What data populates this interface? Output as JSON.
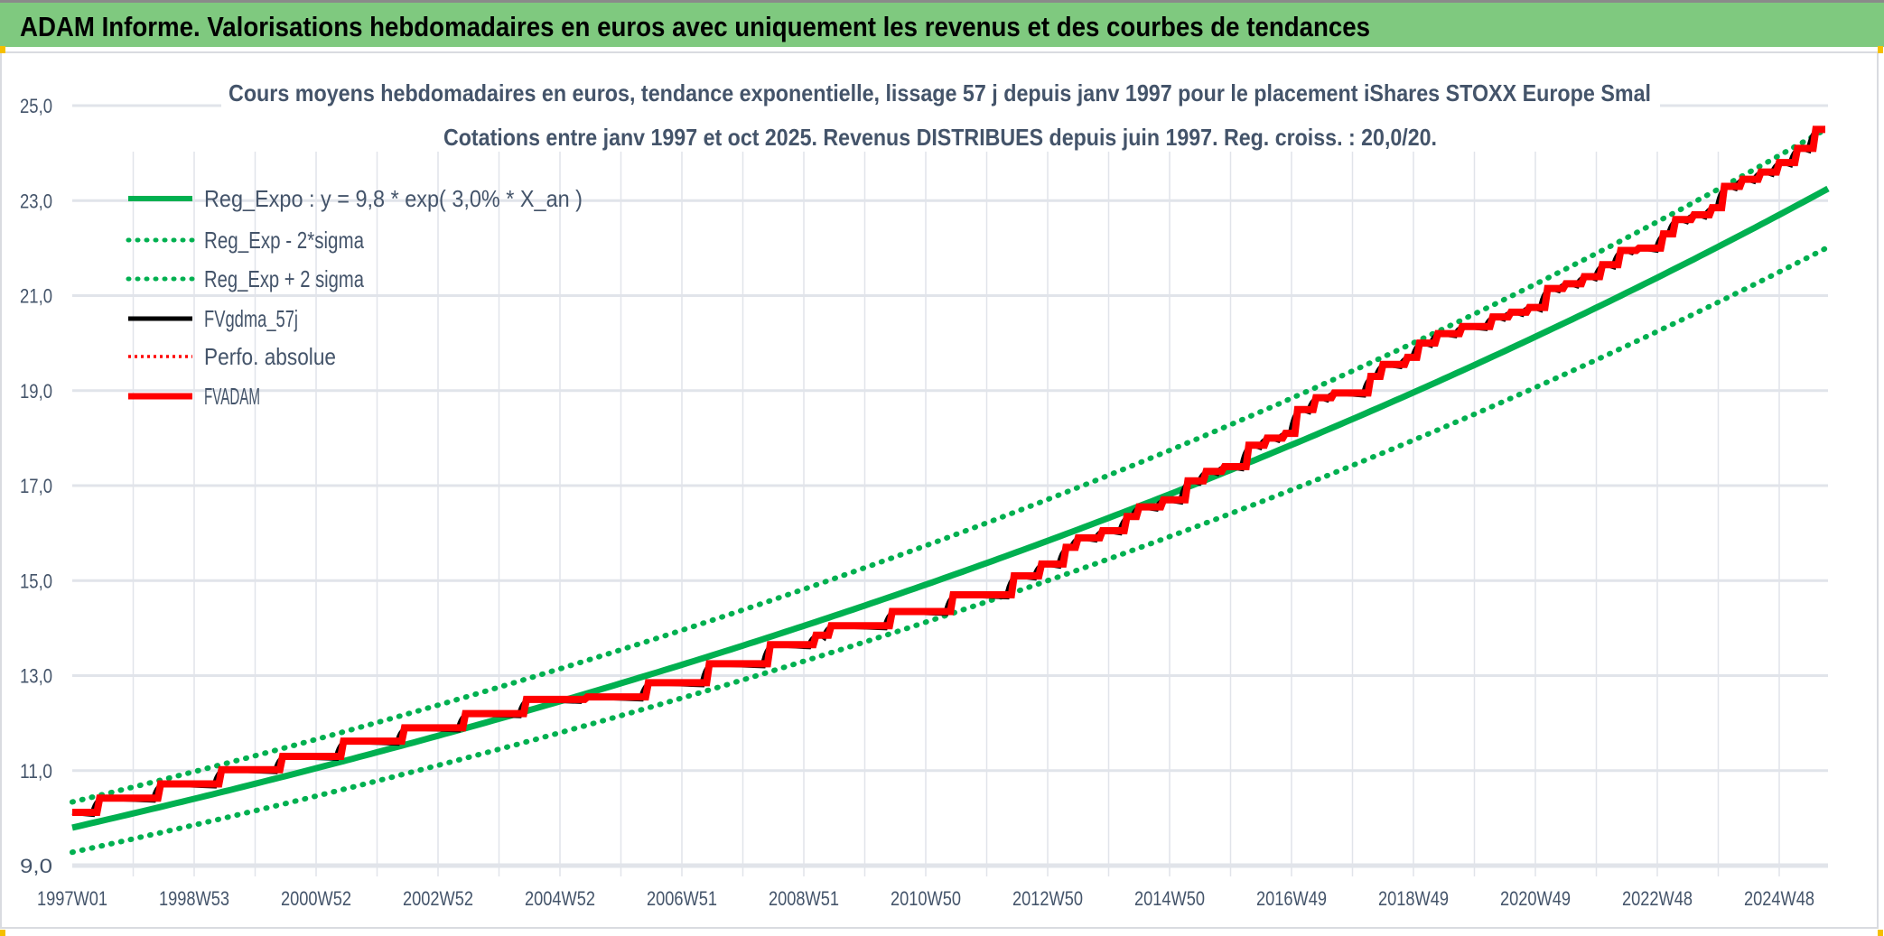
{
  "header": {
    "title": "ADAM Informe. Valorisations hebdomadaires en euros avec uniquement les revenus et des courbes de tendances"
  },
  "colors": {
    "header_bg": "#7fc97f",
    "reg": "#00b050",
    "adam": "#ff0000",
    "gdma": "#000000",
    "title_text": "#44546a",
    "grid": "#e1e4ea"
  },
  "chart_data": {
    "type": "line",
    "title": [
      "Cours moyens hebdomadaires en euros, tendance exponentielle, lissage 57 j depuis janv 1997 pour le placement iShares STOXX Europe Smal",
      "Cotations entre janv 1997 et oct 2025. Revenus DISTRIBUES depuis juin 1997. Reg. croiss. : 20,0/20."
    ],
    "xlabel": "",
    "ylabel": "",
    "xlim": [
      1997.0,
      2025.8
    ],
    "ylim": [
      9.0,
      25.0
    ],
    "yticks": [
      "9,0",
      "11,0",
      "13,0",
      "15,0",
      "17,0",
      "19,0",
      "21,0",
      "23,0",
      "25,0"
    ],
    "ytick_values": [
      9,
      11,
      13,
      15,
      17,
      19,
      21,
      23,
      25
    ],
    "xticks": [
      "1997W01",
      "1998W53",
      "2000W52",
      "2002W52",
      "2004W52",
      "2006W51",
      "2008W51",
      "2010W50",
      "2012W50",
      "2014W50",
      "2016W49",
      "2018W49",
      "2020W49",
      "2022W48",
      "2024W48"
    ],
    "xtick_values": [
      1997,
      1999,
      2001,
      2003,
      2005,
      2007,
      2009,
      2011,
      2013,
      2015,
      2017,
      2019,
      2021,
      2023,
      2025
    ],
    "grid": true,
    "legend_position": "top-left",
    "legend": [
      {
        "label": "Reg_Expo : y = 9,8 * exp( 3,0% *  X_an )",
        "style": "solid-green"
      },
      {
        "label": "Reg_Exp - 2*sigma",
        "style": "dotted-green"
      },
      {
        "label": "Reg_Exp + 2 sigma",
        "style": "dotted-green"
      },
      {
        "label": "FVgdma_57j",
        "style": "solid-black"
      },
      {
        "label": "Perfo. absolue",
        "style": "dotted-red"
      },
      {
        "label": "FVADAM",
        "style": "solid-red"
      }
    ],
    "regression": {
      "a": 9.8,
      "rate": 0.03,
      "minus_2sigma_factor": 0.947,
      "plus_2sigma_factor": 1.055
    },
    "fvadam_steps": [
      [
        1997.0,
        10.12
      ],
      [
        1997.45,
        10.42
      ],
      [
        1998.45,
        10.72
      ],
      [
        1999.45,
        11.02
      ],
      [
        2000.45,
        11.3
      ],
      [
        2001.45,
        11.62
      ],
      [
        2002.45,
        11.9
      ],
      [
        2003.45,
        12.2
      ],
      [
        2004.45,
        12.5
      ],
      [
        2005.45,
        12.55
      ],
      [
        2006.45,
        12.85
      ],
      [
        2007.45,
        13.25
      ],
      [
        2008.45,
        13.65
      ],
      [
        2009.2,
        13.85
      ],
      [
        2009.45,
        14.05
      ],
      [
        2010.45,
        14.35
      ],
      [
        2011.45,
        14.7
      ],
      [
        2012.45,
        15.1
      ],
      [
        2012.9,
        15.35
      ],
      [
        2013.3,
        15.7
      ],
      [
        2013.5,
        15.9
      ],
      [
        2013.9,
        16.05
      ],
      [
        2014.3,
        16.35
      ],
      [
        2014.5,
        16.55
      ],
      [
        2014.9,
        16.7
      ],
      [
        2015.3,
        17.1
      ],
      [
        2015.6,
        17.3
      ],
      [
        2015.9,
        17.4
      ],
      [
        2016.3,
        17.85
      ],
      [
        2016.6,
        18.0
      ],
      [
        2016.9,
        18.1
      ],
      [
        2017.1,
        18.6
      ],
      [
        2017.4,
        18.85
      ],
      [
        2017.7,
        18.95
      ],
      [
        2018.3,
        19.3
      ],
      [
        2018.5,
        19.55
      ],
      [
        2018.9,
        19.7
      ],
      [
        2019.1,
        20.0
      ],
      [
        2019.4,
        20.2
      ],
      [
        2019.8,
        20.35
      ],
      [
        2020.3,
        20.55
      ],
      [
        2020.6,
        20.65
      ],
      [
        2020.9,
        20.75
      ],
      [
        2021.2,
        21.15
      ],
      [
        2021.5,
        21.25
      ],
      [
        2021.8,
        21.4
      ],
      [
        2022.1,
        21.65
      ],
      [
        2022.4,
        21.95
      ],
      [
        2022.7,
        22.0
      ],
      [
        2023.1,
        22.3
      ],
      [
        2023.3,
        22.6
      ],
      [
        2023.6,
        22.7
      ],
      [
        2023.9,
        22.85
      ],
      [
        2024.1,
        23.3
      ],
      [
        2024.4,
        23.45
      ],
      [
        2024.7,
        23.6
      ],
      [
        2025.0,
        23.8
      ],
      [
        2025.3,
        24.1
      ],
      [
        2025.6,
        24.5
      ]
    ]
  }
}
